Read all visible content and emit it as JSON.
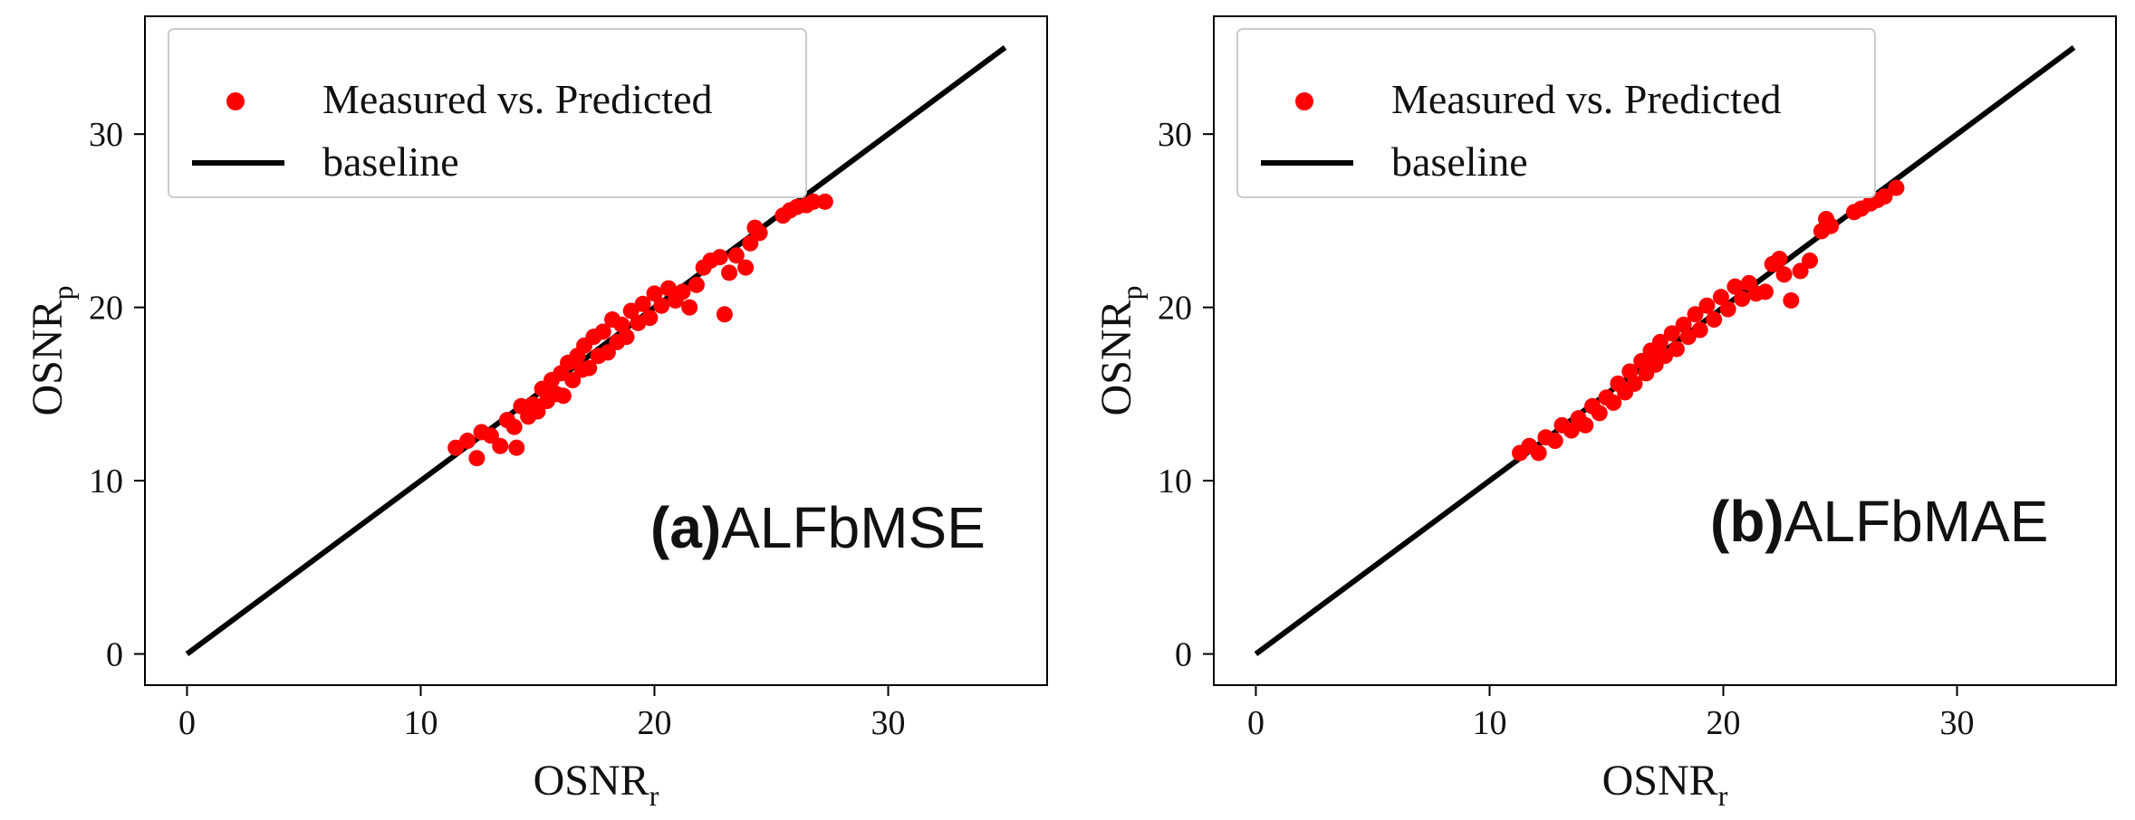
{
  "chart_data": [
    {
      "type": "scatter",
      "panel_label_prefix": "(a)",
      "panel_label_name": "ALFbMSE",
      "xlabel_main": "OSNR",
      "xlabel_sub": "r",
      "ylabel_main": "OSNR",
      "ylabel_sub": "p",
      "xlim": [
        -1.8,
        36.8
      ],
      "ylim": [
        -1.8,
        36.8
      ],
      "xticks": [
        0,
        10,
        20,
        30
      ],
      "yticks": [
        0,
        10,
        20,
        30
      ],
      "legend_position": "top-left",
      "series": [
        {
          "name": "Measured vs. Predicted",
          "kind": "scatter",
          "color": "#ff0000",
          "points": [
            [
              11.5,
              11.9
            ],
            [
              12.0,
              12.3
            ],
            [
              12.4,
              11.3
            ],
            [
              12.6,
              12.8
            ],
            [
              13.0,
              12.6
            ],
            [
              13.4,
              12.0
            ],
            [
              13.7,
              13.5
            ],
            [
              14.0,
              13.1
            ],
            [
              14.1,
              11.9
            ],
            [
              14.3,
              14.3
            ],
            [
              14.6,
              13.7
            ],
            [
              14.8,
              14.4
            ],
            [
              15.0,
              14.0
            ],
            [
              15.2,
              15.3
            ],
            [
              15.4,
              14.6
            ],
            [
              15.6,
              15.8
            ],
            [
              15.8,
              15.0
            ],
            [
              16.0,
              16.2
            ],
            [
              16.1,
              14.9
            ],
            [
              16.3,
              16.8
            ],
            [
              16.5,
              15.8
            ],
            [
              16.7,
              17.2
            ],
            [
              16.9,
              16.4
            ],
            [
              17.0,
              17.8
            ],
            [
              17.2,
              16.5
            ],
            [
              17.4,
              18.3
            ],
            [
              17.6,
              17.2
            ],
            [
              17.8,
              18.6
            ],
            [
              18.0,
              17.4
            ],
            [
              18.2,
              19.3
            ],
            [
              18.4,
              18.0
            ],
            [
              18.6,
              19.0
            ],
            [
              18.8,
              18.3
            ],
            [
              19.0,
              19.8
            ],
            [
              19.3,
              19.1
            ],
            [
              19.5,
              20.2
            ],
            [
              19.8,
              19.4
            ],
            [
              20.0,
              20.8
            ],
            [
              20.3,
              20.1
            ],
            [
              20.6,
              21.1
            ],
            [
              20.9,
              20.4
            ],
            [
              21.2,
              20.9
            ],
            [
              21.5,
              20.0
            ],
            [
              21.8,
              21.3
            ],
            [
              22.1,
              22.3
            ],
            [
              22.4,
              22.7
            ],
            [
              22.8,
              22.9
            ],
            [
              23.0,
              19.6
            ],
            [
              23.2,
              22.0
            ],
            [
              23.5,
              23.0
            ],
            [
              23.9,
              22.3
            ],
            [
              24.1,
              23.7
            ],
            [
              24.3,
              24.6
            ],
            [
              24.5,
              24.3
            ],
            [
              25.5,
              25.3
            ],
            [
              25.8,
              25.6
            ],
            [
              26.1,
              25.8
            ],
            [
              26.5,
              25.9
            ],
            [
              26.8,
              26.1
            ],
            [
              27.3,
              26.1
            ]
          ]
        },
        {
          "name": "baseline",
          "kind": "line",
          "color": "#000000",
          "x": [
            0,
            35
          ],
          "y": [
            0,
            35
          ]
        }
      ]
    },
    {
      "type": "scatter",
      "panel_label_prefix": "(b)",
      "panel_label_name": "ALFbMAE",
      "xlabel_main": "OSNR",
      "xlabel_sub": "r",
      "ylabel_main": "OSNR",
      "ylabel_sub": "p",
      "xlim": [
        -1.8,
        36.8
      ],
      "ylim": [
        -1.8,
        36.8
      ],
      "xticks": [
        0,
        10,
        20,
        30
      ],
      "yticks": [
        0,
        10,
        20,
        30
      ],
      "legend_position": "top-left",
      "series": [
        {
          "name": "Measured vs. Predicted",
          "kind": "scatter",
          "color": "#ff0000",
          "points": [
            [
              11.3,
              11.6
            ],
            [
              11.7,
              12.0
            ],
            [
              12.1,
              11.6
            ],
            [
              12.4,
              12.5
            ],
            [
              12.8,
              12.3
            ],
            [
              13.1,
              13.2
            ],
            [
              13.5,
              12.9
            ],
            [
              13.8,
              13.6
            ],
            [
              14.1,
              13.2
            ],
            [
              14.4,
              14.3
            ],
            [
              14.7,
              13.9
            ],
            [
              15.0,
              14.8
            ],
            [
              15.3,
              14.5
            ],
            [
              15.5,
              15.6
            ],
            [
              15.8,
              15.1
            ],
            [
              16.0,
              16.3
            ],
            [
              16.2,
              15.6
            ],
            [
              16.5,
              16.9
            ],
            [
              16.7,
              16.2
            ],
            [
              16.9,
              17.5
            ],
            [
              17.1,
              16.7
            ],
            [
              17.3,
              18.0
            ],
            [
              17.5,
              17.2
            ],
            [
              17.8,
              18.5
            ],
            [
              18.0,
              17.6
            ],
            [
              18.3,
              19.0
            ],
            [
              18.5,
              18.3
            ],
            [
              18.8,
              19.6
            ],
            [
              19.0,
              18.7
            ],
            [
              19.3,
              20.1
            ],
            [
              19.6,
              19.3
            ],
            [
              19.9,
              20.6
            ],
            [
              20.2,
              19.9
            ],
            [
              20.5,
              21.2
            ],
            [
              20.8,
              20.5
            ],
            [
              21.1,
              21.4
            ],
            [
              21.4,
              20.8
            ],
            [
              21.8,
              20.9
            ],
            [
              22.1,
              22.5
            ],
            [
              22.4,
              22.8
            ],
            [
              22.6,
              21.9
            ],
            [
              22.9,
              20.4
            ],
            [
              23.3,
              22.1
            ],
            [
              23.7,
              22.7
            ],
            [
              24.2,
              24.4
            ],
            [
              24.4,
              25.1
            ],
            [
              24.6,
              24.7
            ],
            [
              25.6,
              25.5
            ],
            [
              25.9,
              25.7
            ],
            [
              26.3,
              26.0
            ],
            [
              26.6,
              26.2
            ],
            [
              26.9,
              26.4
            ],
            [
              27.4,
              26.9
            ]
          ]
        },
        {
          "name": "baseline",
          "kind": "line",
          "color": "#000000",
          "x": [
            0,
            35
          ],
          "y": [
            0,
            35
          ]
        }
      ]
    }
  ]
}
